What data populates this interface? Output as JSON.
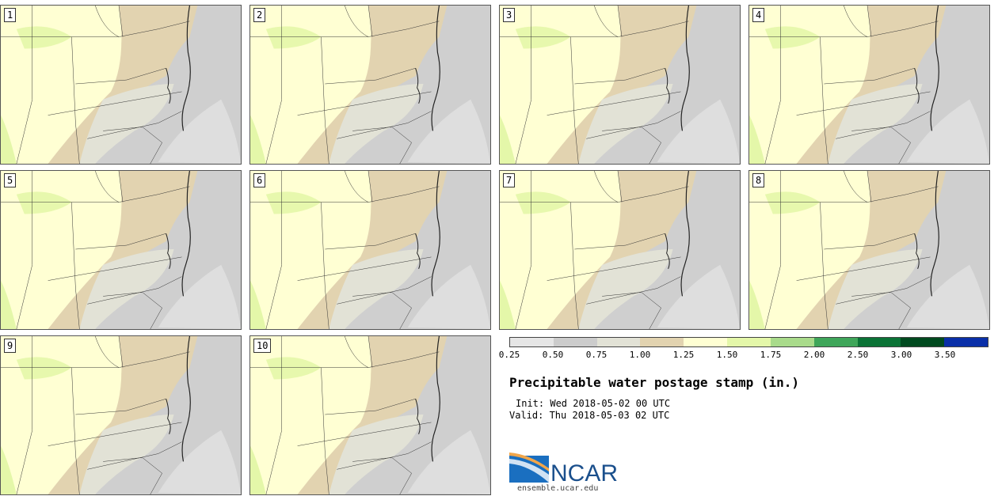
{
  "panels": [
    {
      "label": "1"
    },
    {
      "label": "2"
    },
    {
      "label": "3"
    },
    {
      "label": "4"
    },
    {
      "label": "5"
    },
    {
      "label": "6"
    },
    {
      "label": "7"
    },
    {
      "label": "8"
    },
    {
      "label": "9"
    },
    {
      "label": "10"
    }
  ],
  "colorbar": {
    "colors": [
      "#e6e6e6",
      "#cccccc",
      "#e2e2d6",
      "#e2d3b0",
      "#ffffd3",
      "#e4f7a9",
      "#a9db8b",
      "#3fa65a",
      "#0b7336",
      "#004a1f",
      "#0a2fa8"
    ],
    "ticks": [
      "0.25",
      "0.50",
      "0.75",
      "1.00",
      "1.25",
      "1.50",
      "1.75",
      "2.00",
      "2.50",
      "3.00",
      "3.50"
    ]
  },
  "title": "Precipitable water postage stamp (in.)",
  "init": "Init: Wed 2018-05-02 00 UTC",
  "valid": "Valid: Thu 2018-05-03 02 UTC",
  "logo": {
    "text": "NCAR",
    "site": "ensemble.ucar.edu",
    "brand_color": "#1a4f8c"
  }
}
